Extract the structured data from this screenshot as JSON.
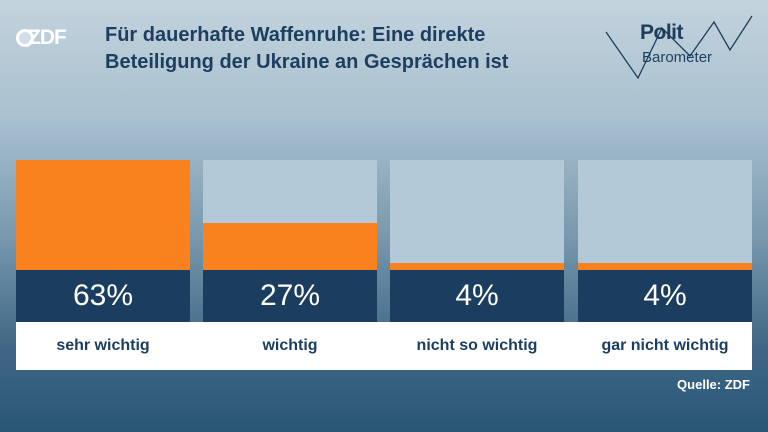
{
  "logo": {
    "text": "ZDF"
  },
  "header": {
    "title": "Für dauerhafte Waffenruhe: Eine direkte Beteiligung der Ukraine an Gesprächen ist"
  },
  "brand": {
    "line1": "Polit",
    "line2": "Barometer"
  },
  "colors": {
    "fill": "#f9821e",
    "empty": "#b3c9d7",
    "value_bg": "#1b3d5f",
    "text_dark": "#1d3e5e"
  },
  "chart_data": {
    "type": "bar",
    "title": "Für dauerhafte Waffenruhe: Eine direkte Beteiligung der Ukraine an Gesprächen ist",
    "categories": [
      "sehr wichtig",
      "wichtig",
      "nicht so wichtig",
      "gar nicht wichtig"
    ],
    "values": [
      63,
      27,
      4,
      4
    ],
    "value_labels": [
      "63%",
      "27%",
      "4%",
      "4%"
    ],
    "unit": "%",
    "ylim": [
      0,
      63
    ]
  },
  "footer": {
    "source": "Quelle: ZDF"
  }
}
